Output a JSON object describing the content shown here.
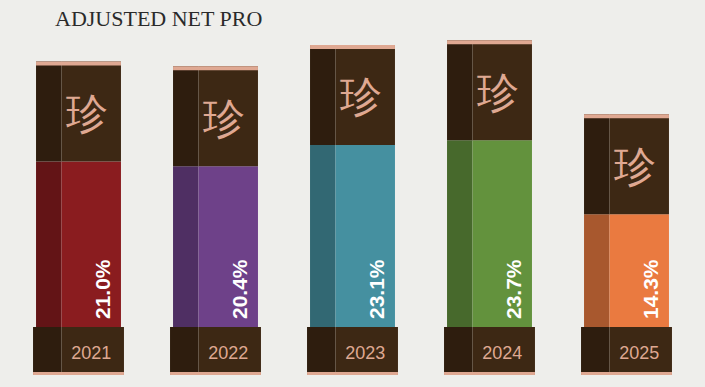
{
  "chart_data": {
    "type": "bar",
    "title": "ADJUSTED NET PRO",
    "annotation": "珍",
    "categories": [
      "2021",
      "2022",
      "2023",
      "2024",
      "2025"
    ],
    "values": [
      21.0,
      20.4,
      23.1,
      23.7,
      14.3
    ],
    "value_labels": [
      "21.0%",
      "20.4%",
      "23.1%",
      "23.7%",
      "14.3%"
    ],
    "colors": [
      "#8a1c1f",
      "#6e4189",
      "#4590a0",
      "#63923d",
      "#ea7a40"
    ],
    "ylim": [
      0,
      25
    ],
    "data_labels": true,
    "tick_labels": false,
    "grid": false
  }
}
